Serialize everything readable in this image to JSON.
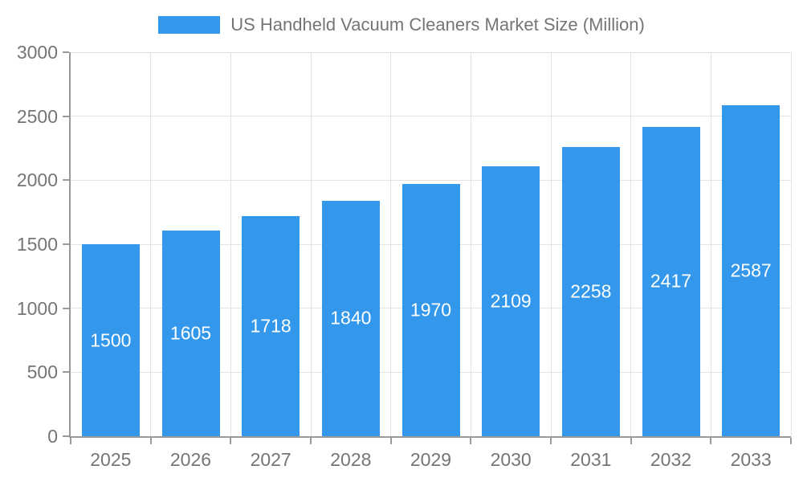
{
  "colors": {
    "bar": "#3398EC",
    "axis": "#999999",
    "grid": "#E3E3E3",
    "tick_text": "#757575",
    "bar_label": "#FFFFFF",
    "legend_text": "#757575"
  },
  "legend": {
    "label": "US Handheld Vacuum Cleaners Market Size (Million)"
  },
  "chart_data": {
    "type": "bar",
    "title": "US Handheld Vacuum Cleaners Market Size (Million)",
    "categories": [
      "2025",
      "2026",
      "2027",
      "2028",
      "2029",
      "2030",
      "2031",
      "2032",
      "2033"
    ],
    "values": [
      1500,
      1605,
      1718,
      1840,
      1970,
      2109,
      2258,
      2417,
      2587
    ],
    "xlabel": "",
    "ylabel": "",
    "ylim": [
      0,
      3000
    ],
    "yticks": [
      0,
      500,
      1000,
      1500,
      2000,
      2500,
      3000
    ],
    "grid": true,
    "legend_position": "top",
    "bar_labels": "centered-white"
  }
}
